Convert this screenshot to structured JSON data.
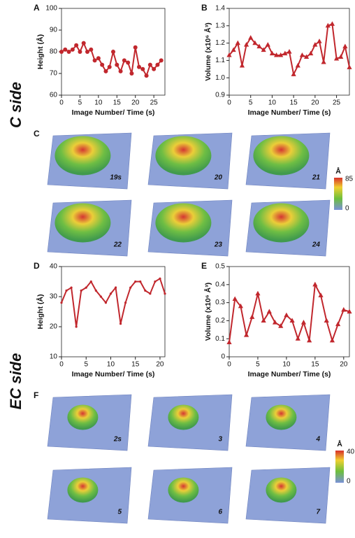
{
  "chart_data": [
    {
      "type": "line",
      "panel": "A",
      "x_label": "Image Number/ Time (s)",
      "y_label": "Height (Å)",
      "marker": "circle",
      "color": "#c1272d",
      "x": [
        0,
        1,
        2,
        3,
        4,
        5,
        6,
        7,
        8,
        9,
        10,
        11,
        12,
        13,
        14,
        15,
        16,
        17,
        18,
        19,
        20,
        21,
        22,
        23,
        24,
        25,
        26,
        27
      ],
      "values": [
        80,
        81,
        80,
        81,
        83,
        80,
        84,
        80,
        81,
        76,
        77,
        74,
        71,
        73,
        80,
        74,
        71,
        76,
        75,
        70,
        82,
        73,
        72,
        69,
        74,
        72,
        74,
        76
      ],
      "xlim": [
        0,
        28
      ],
      "ylim": [
        60,
        100
      ],
      "xticks": [
        0,
        5,
        10,
        15,
        20,
        25
      ],
      "yticks": [
        60,
        70,
        80,
        90,
        100
      ]
    },
    {
      "type": "line",
      "panel": "B",
      "x_label": "Image Number/ Time (s)",
      "y_label": "Volume (x10⁶ Å³)",
      "marker": "triangle",
      "color": "#c1272d",
      "x": [
        0,
        1,
        2,
        3,
        4,
        5,
        6,
        7,
        8,
        9,
        10,
        11,
        12,
        13,
        14,
        15,
        16,
        17,
        18,
        19,
        20,
        21,
        22,
        23,
        24,
        25,
        26,
        27,
        28
      ],
      "values": [
        1.13,
        1.16,
        1.2,
        1.07,
        1.19,
        1.23,
        1.2,
        1.18,
        1.16,
        1.19,
        1.14,
        1.13,
        1.13,
        1.14,
        1.15,
        1.02,
        1.07,
        1.13,
        1.12,
        1.14,
        1.19,
        1.21,
        1.09,
        1.3,
        1.31,
        1.11,
        1.12,
        1.18,
        1.06
      ],
      "xlim": [
        0,
        28
      ],
      "ylim": [
        0.9,
        1.4
      ],
      "xticks": [
        0,
        5,
        10,
        15,
        20,
        25
      ],
      "yticks": [
        0.9,
        {
          "value": 1,
          "label": "1.0"
        },
        1.1,
        1.2,
        1.3,
        1.4
      ]
    },
    {
      "type": "line",
      "panel": "D",
      "x_label": "Image Number/ Time (s)",
      "y_label": "Height (Å)",
      "marker": "dot",
      "color": "#c1272d",
      "x": [
        0,
        1,
        2,
        3,
        4,
        5,
        6,
        7,
        8,
        9,
        10,
        11,
        12,
        13,
        14,
        15,
        16,
        17,
        18,
        19,
        20,
        21
      ],
      "values": [
        28,
        32,
        33,
        20,
        32,
        33,
        35,
        32,
        30,
        28,
        31,
        33,
        21,
        28,
        33,
        35,
        35,
        32,
        31,
        35,
        36,
        31
      ],
      "xlim": [
        0,
        21
      ],
      "ylim": [
        10,
        40
      ],
      "xticks": [
        0,
        5,
        10,
        15,
        20
      ],
      "yticks": [
        10,
        20,
        30,
        40
      ]
    },
    {
      "type": "line",
      "panel": "E",
      "x_label": "Image Number/ Time (s)",
      "y_label": "Volume (x10⁶ Å³)",
      "marker": "triangle",
      "color": "#c1272d",
      "x": [
        0,
        1,
        2,
        3,
        4,
        5,
        6,
        7,
        8,
        9,
        10,
        11,
        12,
        13,
        14,
        15,
        16,
        17,
        18,
        19,
        20,
        21
      ],
      "values": [
        0.08,
        0.32,
        0.28,
        0.12,
        0.22,
        0.35,
        0.2,
        0.25,
        0.19,
        0.17,
        0.23,
        0.2,
        0.1,
        0.19,
        0.09,
        0.4,
        0.34,
        0.2,
        0.09,
        0.18,
        0.26,
        0.25
      ],
      "xlim": [
        0,
        21
      ],
      "ylim": [
        0,
        0.5
      ],
      "xticks": [
        0,
        5,
        10,
        15,
        20
      ],
      "yticks": [
        0,
        0.1,
        0.2,
        0.3,
        0.4,
        0.5
      ]
    }
  ],
  "sides": [
    "C side",
    "EC side"
  ],
  "image_panels": [
    {
      "panel": "C",
      "frames": [
        "19s",
        "20",
        "21",
        "22",
        "23",
        "24"
      ],
      "colorbar": {
        "unit": "Å",
        "max": 85,
        "min": 0
      }
    },
    {
      "panel": "F",
      "frames": [
        "2s",
        "3",
        "4",
        "5",
        "6",
        "7"
      ],
      "colorbar": {
        "unit": "Å",
        "max": 40,
        "min": 0
      }
    }
  ]
}
